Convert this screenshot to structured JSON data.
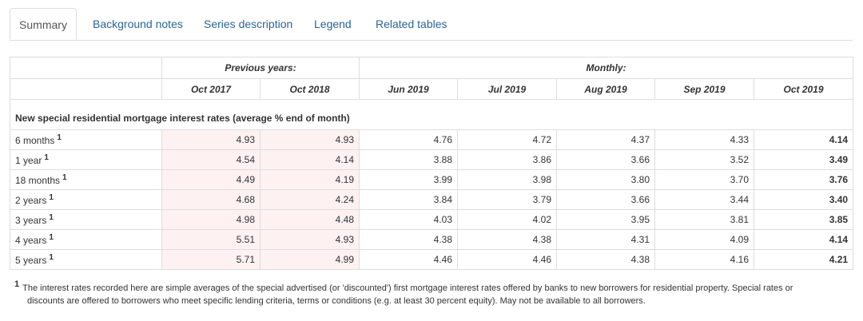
{
  "tabs": [
    {
      "label": "Summary"
    },
    {
      "label": "Background notes"
    },
    {
      "label": "Series description"
    },
    {
      "label": "Legend"
    },
    {
      "label": "Related tables"
    }
  ],
  "table": {
    "group_previous": "Previous years:",
    "group_monthly": "Monthly:",
    "columns": [
      "Oct 2017",
      "Oct 2018",
      "Jun 2019",
      "Jul 2019",
      "Aug 2019",
      "Sep 2019",
      "Oct 2019"
    ],
    "section_title": "New special residential mortgage interest rates (average % end of month)",
    "rows": [
      {
        "label": "6 months",
        "note": "1",
        "values": [
          "4.93",
          "4.93",
          "4.76",
          "4.72",
          "4.37",
          "4.33",
          "4.14"
        ]
      },
      {
        "label": "1 year",
        "note": "1",
        "values": [
          "4.54",
          "4.14",
          "3.88",
          "3.86",
          "3.66",
          "3.52",
          "3.49"
        ]
      },
      {
        "label": "18 months",
        "note": "1",
        "values": [
          "4.49",
          "4.19",
          "3.99",
          "3.98",
          "3.80",
          "3.70",
          "3.76"
        ]
      },
      {
        "label": "2 years",
        "note": "1",
        "values": [
          "4.68",
          "4.24",
          "3.84",
          "3.79",
          "3.66",
          "3.44",
          "3.40"
        ]
      },
      {
        "label": "3 years",
        "note": "1",
        "values": [
          "4.98",
          "4.48",
          "4.03",
          "4.02",
          "3.95",
          "3.81",
          "3.85"
        ]
      },
      {
        "label": "4 years",
        "note": "1",
        "values": [
          "5.51",
          "4.93",
          "4.38",
          "4.38",
          "4.31",
          "4.09",
          "4.14"
        ]
      },
      {
        "label": "5 years",
        "note": "1",
        "values": [
          "5.71",
          "4.99",
          "4.46",
          "4.46",
          "4.38",
          "4.16",
          "4.21"
        ]
      }
    ]
  },
  "footnote": {
    "mark": "1",
    "line1": "The interest rates recorded here are simple averages of the special advertised (or 'discounted') first mortgage interest rates offered by banks to new borrowers for residential property. Special rates or",
    "line2": "discounts are offered to borrowers who meet specific lending criteria, terms or conditions (e.g. at least 30 percent equity). May not be available to all borrowers."
  },
  "colors": {
    "link": "#2a6496",
    "previous_years_bg": "#fdf1f1",
    "border": "#dddddd"
  }
}
